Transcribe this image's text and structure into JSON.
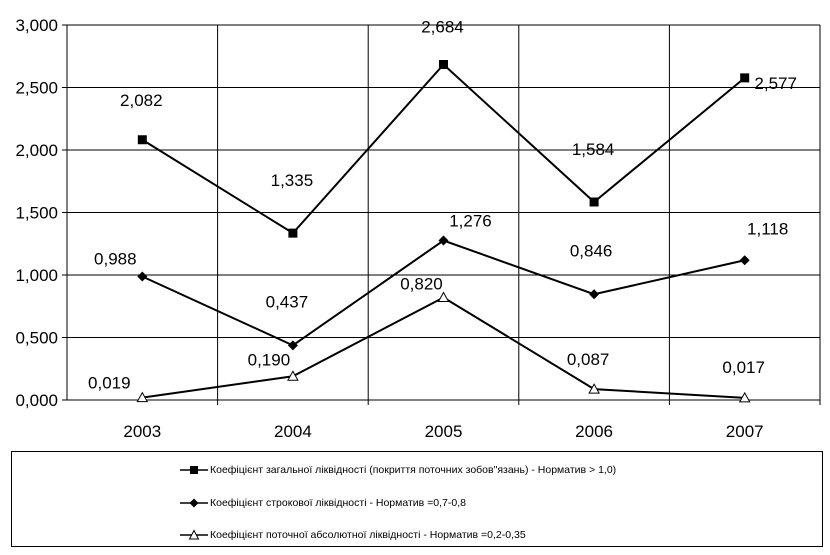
{
  "chart_data": {
    "type": "line",
    "categories": [
      "2003",
      "2004",
      "2005",
      "2006",
      "2007"
    ],
    "ylim": [
      0,
      3
    ],
    "yticks": [
      "0,000",
      "0,500",
      "1,000",
      "1,500",
      "2,000",
      "2,500",
      "3,000"
    ],
    "grid": true,
    "legend_position": "bottom",
    "series": [
      {
        "name": "Коефіцієнт загальної ліквідності (покриття поточних зобов\"язань) - Норматив > 1,0)",
        "marker": "square",
        "values": [
          2.082,
          1.335,
          2.684,
          1.584,
          2.577
        ],
        "labels": [
          "2,082",
          "1,335",
          "2,684",
          "1,584",
          "2,577"
        ]
      },
      {
        "name": "Коефіцієнт строкової ліквідності - Норматив =0,7-0,8",
        "marker": "diamond",
        "values": [
          0.988,
          0.437,
          1.276,
          0.846,
          1.118
        ],
        "labels": [
          "0,988",
          "0,437",
          "1,276",
          "0,846",
          "1,118"
        ]
      },
      {
        "name": "Коефіцієнт поточної абсолютної ліквідності - Норматив =0,2-0,35",
        "marker": "triangle-open",
        "values": [
          0.019,
          0.19,
          0.82,
          0.087,
          0.017
        ],
        "labels": [
          "0,019",
          "0,190",
          "0,820",
          "0,087",
          "0,017"
        ]
      }
    ]
  }
}
